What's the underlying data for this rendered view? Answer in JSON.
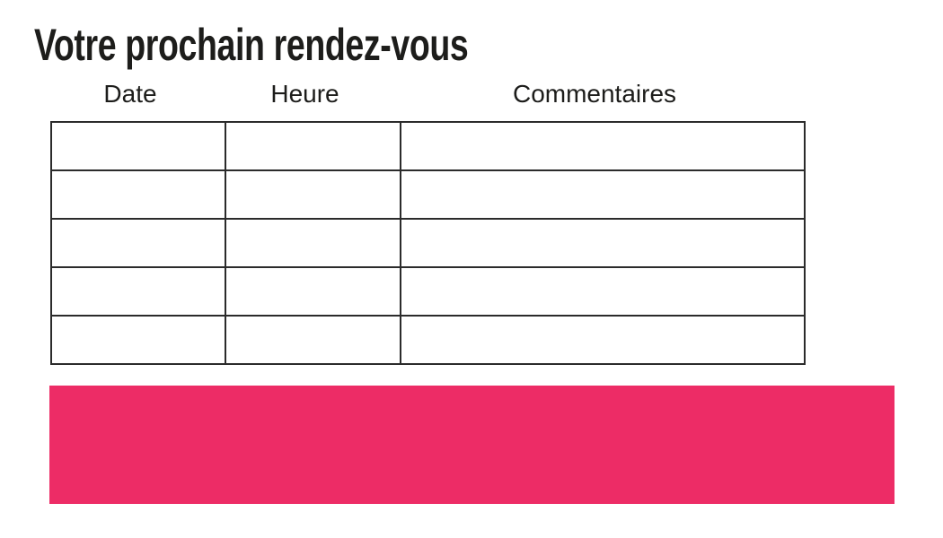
{
  "page": {
    "title": "Votre prochain rendez-vous"
  },
  "table": {
    "headers": [
      "Date",
      "Heure",
      "Commentaires"
    ],
    "rows": [
      [
        "",
        "",
        ""
      ],
      [
        "",
        "",
        ""
      ],
      [
        "",
        "",
        ""
      ],
      [
        "",
        "",
        ""
      ],
      [
        "",
        "",
        ""
      ]
    ]
  },
  "banner": {
    "text": ""
  },
  "colors": {
    "background": "#FFFFFF",
    "text": "#1D1D1B",
    "table_border": "#2B2B2B",
    "accent_pink": "#ED2C66"
  }
}
